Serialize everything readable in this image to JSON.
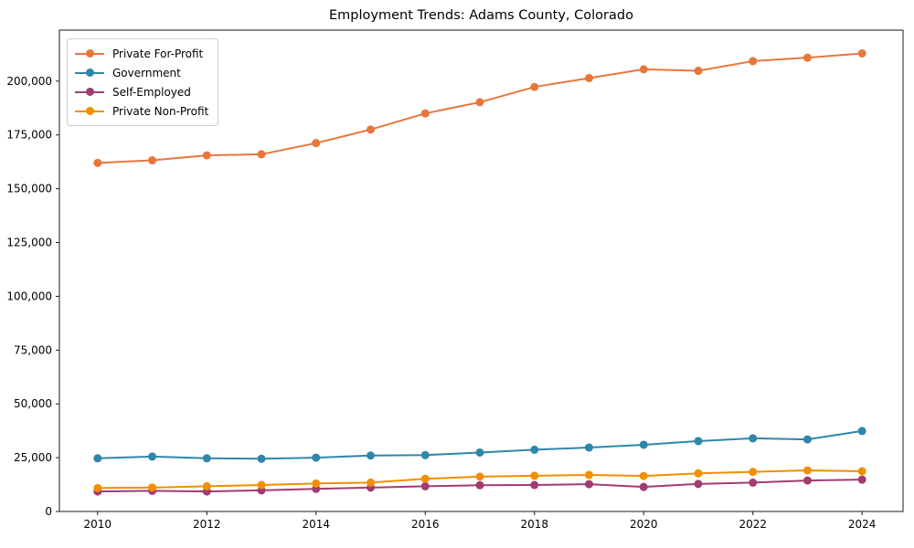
{
  "chart_data": {
    "type": "line",
    "title": "Employment Trends: Adams County, Colorado",
    "xlabel": "",
    "ylabel": "",
    "x": [
      2010,
      2011,
      2012,
      2013,
      2014,
      2015,
      2016,
      2017,
      2018,
      2019,
      2020,
      2021,
      2022,
      2023,
      2024
    ],
    "series": [
      {
        "name": "Private For-Profit",
        "color": "#e8763c",
        "values": [
          162000,
          163200,
          165500,
          166000,
          171200,
          177500,
          185000,
          190200,
          197300,
          201400,
          205500,
          204800,
          209300,
          210900,
          212900
        ]
      },
      {
        "name": "Government",
        "color": "#2e86ab",
        "values": [
          24700,
          25500,
          24700,
          24500,
          25000,
          26000,
          26200,
          27400,
          28700,
          29700,
          31000,
          32700,
          34000,
          33500,
          37400
        ]
      },
      {
        "name": "Self-Employed",
        "color": "#a23b72",
        "values": [
          9300,
          9600,
          9300,
          9800,
          10500,
          11100,
          11700,
          12200,
          12300,
          12700,
          11400,
          12800,
          13400,
          14400,
          14800
        ]
      },
      {
        "name": "Private Non-Profit",
        "color": "#f18f01",
        "values": [
          10900,
          11100,
          11700,
          12300,
          13000,
          13400,
          15200,
          16200,
          16600,
          17000,
          16500,
          17700,
          18400,
          19100,
          18700
        ]
      }
    ],
    "xticks": [
      2010,
      2012,
      2014,
      2016,
      2018,
      2020,
      2022,
      2024
    ],
    "yticks": [
      0,
      25000,
      50000,
      75000,
      100000,
      125000,
      150000,
      175000,
      200000
    ],
    "ytick_labels": [
      "0",
      "25,000",
      "50,000",
      "75,000",
      "100,000",
      "125,000",
      "150,000",
      "175,000",
      "200,000"
    ],
    "xlim": [
      2009.3,
      2024.75
    ],
    "ylim": [
      0,
      223700
    ],
    "grid": false,
    "legend_position": "upper left",
    "marker": "circle",
    "axis_color": "#1a1a1a"
  }
}
